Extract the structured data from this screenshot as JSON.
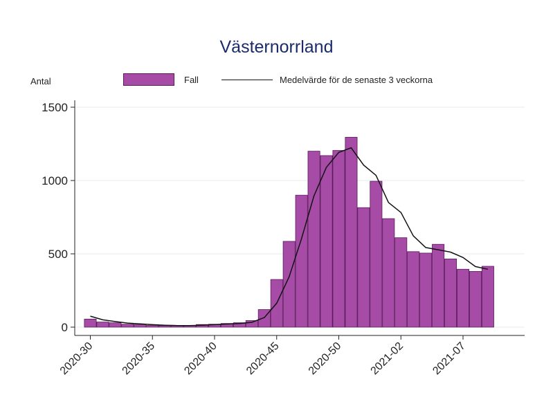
{
  "chart_data": {
    "type": "bar",
    "title": "Västernorrland",
    "ylabel": "Antal",
    "xlabel": "",
    "ylim": [
      0,
      1500
    ],
    "yticks": [
      0,
      500,
      1000,
      1500
    ],
    "grid": true,
    "legend_position": "top",
    "x_tick_labels": [
      "2020-30",
      "2020-35",
      "2020-40",
      "2020-45",
      "2020-50",
      "2021-02",
      "2021-07"
    ],
    "categories": [
      "2020-30",
      "2020-31",
      "2020-32",
      "2020-33",
      "2020-34",
      "2020-35",
      "2020-36",
      "2020-37",
      "2020-38",
      "2020-39",
      "2020-40",
      "2020-41",
      "2020-42",
      "2020-43",
      "2020-44",
      "2020-45",
      "2020-46",
      "2020-47",
      "2020-48",
      "2020-49",
      "2020-50",
      "2020-51",
      "2020-52",
      "2020-53",
      "2021-01",
      "2021-02",
      "2021-03",
      "2021-04",
      "2021-05",
      "2021-06",
      "2021-07",
      "2021-08",
      "2021-09"
    ],
    "series": [
      {
        "name": "Fall",
        "kind": "bar",
        "color": "#a64ca6",
        "values": [
          55,
          35,
          30,
          20,
          18,
          12,
          10,
          10,
          12,
          18,
          20,
          25,
          30,
          45,
          120,
          325,
          585,
          900,
          1200,
          1170,
          1205,
          1295,
          815,
          995,
          740,
          610,
          515,
          505,
          565,
          465,
          395,
          380,
          415
        ]
      },
      {
        "name": "Medelvärde för de senaste 3 veckorna",
        "kind": "line",
        "color": "#111111",
        "values": [
          75,
          50,
          38,
          28,
          22,
          17,
          13,
          11,
          11,
          13,
          17,
          21,
          25,
          33,
          65,
          163,
          343,
          603,
          895,
          1090,
          1192,
          1223,
          1105,
          1035,
          850,
          782,
          622,
          543,
          528,
          512,
          475,
          413,
          395
        ]
      }
    ]
  }
}
